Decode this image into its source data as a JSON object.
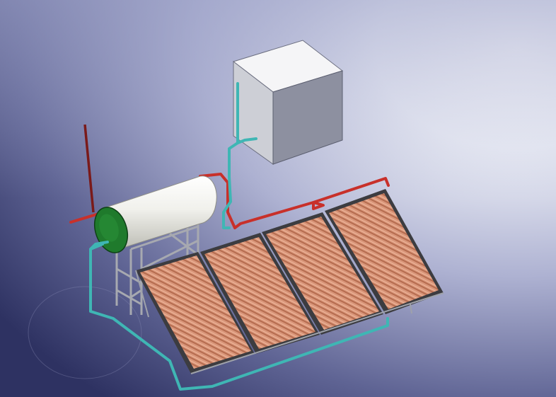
{
  "scene": {
    "subject": "solar-water-heater-assembly",
    "components": {
      "panels": 4,
      "tank": "horizontal-storage-tank",
      "reservoir": "cold-water-reservoir-box",
      "pipes": [
        "hot-water-pipe",
        "cold-water-pipe",
        "vent-pipe"
      ]
    },
    "colors": {
      "background_dark": "#3a3f6e",
      "background_light": "#ffffff",
      "hot_pipe": "#c8302a",
      "cold_pipe": "#3fb6b4",
      "panel_copper": "#cf8a66",
      "panel_frame": "#3c3c40",
      "tank_body": "#f4f4f0",
      "tank_cap": "#1f7a2c",
      "box_top": "#f3f3f5",
      "box_front": "#cdcfd6",
      "box_side": "#8d90a0"
    }
  }
}
